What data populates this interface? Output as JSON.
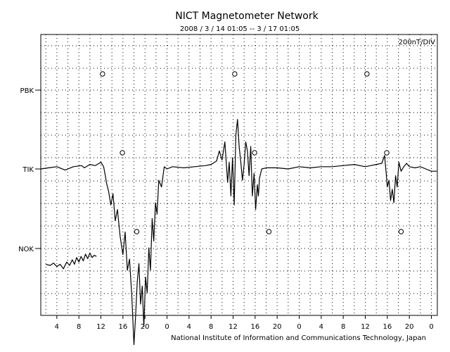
{
  "chart_data": {
    "type": "line",
    "title": "NICT Magnetometer Network",
    "subtitle": "2008 / 3 / 14   01:05 --  3 / 17   01:05",
    "scale_label": "200nT/DIV",
    "credit": "National Institute of Information and Communications Technology, Japan",
    "x_tick_labels": [
      "4",
      "8",
      "12",
      "16",
      "20",
      "0",
      "4",
      "8",
      "12",
      "16",
      "20",
      "0",
      "4",
      "8",
      "12",
      "16",
      "20",
      "0"
    ],
    "station_labels": [
      "PBK",
      "TIK",
      "NOK"
    ],
    "xlim": [
      1.0833,
      73.0833
    ],
    "x_unit": "hours since 2008/3/14 00:00 UT",
    "grid": true,
    "series": [
      {
        "name": "TIK",
        "x": [
          1.1,
          2.5,
          4.0,
          5.5,
          7.0,
          8.5,
          9.0,
          10.0,
          11.0,
          12.0,
          12.5,
          12.8,
          13.0,
          13.4,
          13.8,
          14.2,
          14.6,
          15.0,
          15.5,
          16.0,
          16.4,
          16.8,
          17.2,
          17.6,
          18.0,
          18.3,
          18.6,
          18.9,
          19.2,
          19.5,
          19.8,
          20.1,
          20.4,
          20.7,
          21.0,
          21.3,
          21.6,
          21.9,
          22.2,
          22.5,
          23.0,
          23.5,
          24.0,
          25.0,
          27.0,
          29.0,
          31.0,
          32.0,
          33.0,
          33.5,
          34.0,
          34.5,
          35.0,
          35.3,
          35.6,
          35.9,
          36.2,
          36.5,
          36.8,
          37.1,
          37.4,
          37.7,
          38.0,
          38.3,
          38.6,
          38.9,
          39.2,
          39.5,
          39.8,
          40.1,
          40.4,
          40.6,
          40.8,
          41.2,
          42.0,
          44.0,
          46.0,
          48.0,
          50.0,
          52.0,
          54.0,
          56.0,
          58.0,
          60.0,
          61.0,
          62.0,
          63.0,
          63.5,
          63.8,
          64.0,
          64.3,
          64.6,
          64.9,
          65.2,
          65.5,
          65.8,
          66.1,
          66.5,
          67.0,
          67.5,
          68.0,
          69.0,
          70.0,
          71.0,
          72.0,
          73.0
        ],
        "y": [
          0,
          0.05,
          0.1,
          -0.05,
          0.1,
          0.15,
          0.05,
          0.2,
          0.15,
          0.3,
          0.1,
          -0.3,
          -0.6,
          -1.0,
          -1.6,
          -1.1,
          -2.3,
          -1.8,
          -3.0,
          -3.8,
          -2.8,
          -4.5,
          -4.0,
          -5.6,
          -7.8,
          -6.5,
          -5.0,
          -4.2,
          -6.0,
          -5.2,
          -7.0,
          -4.8,
          -5.5,
          -3.5,
          -4.5,
          -2.2,
          -3.2,
          -1.5,
          -2.0,
          -0.5,
          -0.8,
          0.1,
          0,
          0.1,
          0.05,
          0.1,
          0.15,
          0.2,
          0.35,
          0.8,
          0.4,
          1.2,
          -0.6,
          0.3,
          -1.2,
          0.5,
          -1.6,
          1.5,
          2.2,
          1.0,
          0.3,
          -0.5,
          0.2,
          1.2,
          0.8,
          -0.3,
          1.0,
          -1.2,
          -0.2,
          -1.8,
          -0.7,
          -1.2,
          -0.4,
          0,
          0.05,
          0.05,
          0,
          0.1,
          0.05,
          0.1,
          0.1,
          0.15,
          0.2,
          0.1,
          0.15,
          0.2,
          0.25,
          0.6,
          -0.2,
          -0.8,
          -0.5,
          -1.4,
          -0.9,
          -1.5,
          -0.3,
          -0.8,
          0.3,
          -0.1,
          0.1,
          0.25,
          0.1,
          0.05,
          0.1,
          0,
          -0.1,
          -0.1
        ]
      },
      {
        "name": "NOK",
        "x": [
          2.0,
          2.8,
          3.4,
          4.0,
          4.6,
          5.2,
          5.8,
          6.3,
          6.8,
          7.2,
          7.6,
          8.0,
          8.4,
          8.8,
          9.2,
          9.6,
          10.0,
          10.4,
          10.8,
          11.2
        ],
        "y": [
          -0.7,
          -0.75,
          -0.65,
          -0.8,
          -0.7,
          -0.9,
          -0.6,
          -0.75,
          -0.5,
          -0.7,
          -0.4,
          -0.6,
          -0.35,
          -0.55,
          -0.25,
          -0.45,
          -0.2,
          -0.4,
          -0.3,
          -0.35
        ]
      }
    ],
    "markers": [
      {
        "station": "PBK",
        "x": [
          12.3,
          36.3,
          60.3
        ]
      },
      {
        "station": "TIK",
        "x": [
          15.9,
          39.9,
          63.9
        ]
      },
      {
        "station": "NOK",
        "x": [
          18.5,
          42.5,
          66.5
        ]
      }
    ]
  }
}
